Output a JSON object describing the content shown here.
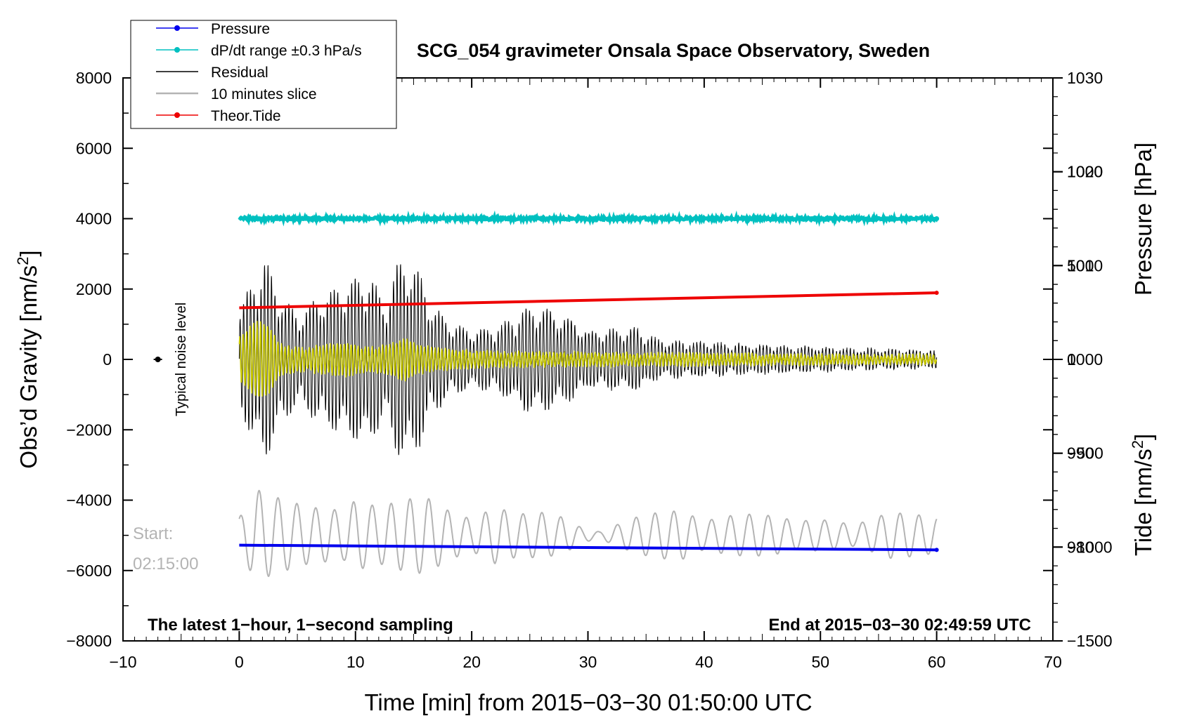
{
  "chart_data": {
    "type": "line",
    "title": "SCG_054 gravimeter Onsala Space Observatory, Sweden",
    "xlabel": "Time [min] from 2015−03−30 01:50:00 UTC",
    "ylabel_left": "Obs’d Gravity [nm/s",
    "ylabel_left_sup": "2",
    "ylabel_left_end": "]",
    "ylabel_pressure": "Pressure [hPa]",
    "ylabel_tide": "Tide [nm/s",
    "ylabel_tide_sup": "2",
    "ylabel_tide_end": "]",
    "xlim": [
      -10,
      70
    ],
    "ylim": [
      -8000,
      8000
    ],
    "x_ticks": [
      {
        "v": -10,
        "label": "−10"
      },
      {
        "v": 0,
        "label": "0"
      },
      {
        "v": 10,
        "label": "10"
      },
      {
        "v": 20,
        "label": "20"
      },
      {
        "v": 30,
        "label": "30"
      },
      {
        "v": 40,
        "label": "40"
      },
      {
        "v": 50,
        "label": "50"
      },
      {
        "v": 60,
        "label": "60"
      },
      {
        "v": 70,
        "label": "70"
      }
    ],
    "y_ticks_left": [
      {
        "v": 8000,
        "label": "8000"
      },
      {
        "v": 6000,
        "label": "6000"
      },
      {
        "v": 4000,
        "label": "4000"
      },
      {
        "v": 2000,
        "label": "2000"
      },
      {
        "v": 0,
        "label": "0"
      },
      {
        "v": -2000,
        "label": "−2000"
      },
      {
        "v": -4000,
        "label": "−4000"
      },
      {
        "v": -6000,
        "label": "−6000"
      },
      {
        "v": -8000,
        "label": "−8000"
      }
    ],
    "pressure_axis": {
      "range": [
        970,
        1030
      ],
      "ticks": [
        {
          "v": 1030,
          "label": "1030"
        },
        {
          "v": 1020,
          "label": "1020"
        },
        {
          "v": 1010,
          "label": "1010"
        },
        {
          "v": 1000,
          "label": "1000"
        },
        {
          "v": 990,
          "label": "990"
        },
        {
          "v": 980,
          "label": "980"
        }
      ]
    },
    "tide_axis": {
      "range": [
        -1500,
        1500
      ],
      "ticks": [
        {
          "v": 1000,
          "label": "1000"
        },
        {
          "v": 500,
          "label": "500"
        },
        {
          "v": 0,
          "label": "0"
        },
        {
          "v": -500,
          "label": "−500"
        },
        {
          "v": -1000,
          "label": "−1000"
        },
        {
          "v": -1500,
          "label": "−1500"
        }
      ]
    },
    "legend": [
      {
        "label": "Pressure",
        "color": "#0000ee",
        "marker": true
      },
      {
        "label": "dP/dt range ±0.3 hPa/s",
        "color": "#00c0c0",
        "marker": true
      },
      {
        "label": "Residual",
        "color": "#000000",
        "marker": false
      },
      {
        "label": "10 minutes slice",
        "color": "#b4b4b4",
        "marker": false
      },
      {
        "label": "Theor.Tide",
        "color": "#ee0000",
        "marker": true
      }
    ],
    "series": [
      {
        "name": "Pressure",
        "color": "#0000ee",
        "axis": "pressure",
        "x": [
          0,
          60
        ],
        "values": [
          980.2,
          979.7
        ]
      },
      {
        "name": "dP/dt range ±0.3 hPa/s",
        "color": "#00c0c0",
        "axis": "gravity",
        "x": [
          0,
          60
        ],
        "values": [
          4000,
          4000
        ],
        "jitter": 40
      },
      {
        "name": "Residual",
        "color": "#000000",
        "axis": "gravity",
        "x_range": [
          0,
          60
        ],
        "period_min": 0.3,
        "envelope_points": [
          [
            0,
            1400
          ],
          [
            1.2,
            2300
          ],
          [
            2.2,
            2900
          ],
          [
            3.5,
            1900
          ],
          [
            5,
            1300
          ],
          [
            6.5,
            1700
          ],
          [
            8.5,
            2100
          ],
          [
            10,
            2300
          ],
          [
            11.2,
            2500
          ],
          [
            12.5,
            1600
          ],
          [
            13.5,
            2700
          ],
          [
            14.3,
            3000
          ],
          [
            15.5,
            2500
          ],
          [
            16.5,
            1600
          ],
          [
            18,
            1100
          ],
          [
            20,
            800
          ],
          [
            22,
            900
          ],
          [
            23.5,
            1200
          ],
          [
            24.8,
            1500
          ],
          [
            26,
            1500
          ],
          [
            27.5,
            1300
          ],
          [
            29,
            1100
          ],
          [
            30,
            800
          ],
          [
            32,
            850
          ],
          [
            34.3,
            900
          ],
          [
            36,
            550
          ],
          [
            38,
            500
          ],
          [
            40,
            500
          ],
          [
            44,
            400
          ],
          [
            48,
            380
          ],
          [
            52,
            300
          ],
          [
            56,
            270
          ],
          [
            60,
            220
          ]
        ]
      },
      {
        "name": "yellow residual",
        "color": "#c8c800",
        "axis": "gravity",
        "x_range": [
          0,
          60
        ],
        "period_min": 0.3,
        "envelope_points": [
          [
            0,
            600
          ],
          [
            1.5,
            1050
          ],
          [
            2.5,
            1000
          ],
          [
            3.5,
            400
          ],
          [
            5,
            300
          ],
          [
            7,
            350
          ],
          [
            9,
            450
          ],
          [
            11,
            300
          ],
          [
            13,
            400
          ],
          [
            14.3,
            600
          ],
          [
            15.5,
            350
          ],
          [
            18,
            250
          ],
          [
            22,
            180
          ],
          [
            30,
            150
          ],
          [
            40,
            130
          ],
          [
            50,
            110
          ],
          [
            60,
            90
          ]
        ]
      },
      {
        "name": "Theor.Tide",
        "color": "#ee0000",
        "axis": "tide",
        "x": [
          0,
          60
        ],
        "values": [
          275,
          355
        ]
      },
      {
        "name": "10 minutes slice",
        "color": "#b4b4b4",
        "axis": "gravity",
        "x_range": [
          0,
          60
        ],
        "center": -5000,
        "cycles": 37,
        "amplitude_points": [
          [
            0,
            500
          ],
          [
            1.5,
            1300
          ],
          [
            3,
            1100
          ],
          [
            6,
            800
          ],
          [
            9,
            700
          ],
          [
            10,
            1000
          ],
          [
            12,
            800
          ],
          [
            14,
            1000
          ],
          [
            16,
            1100
          ],
          [
            18,
            700
          ],
          [
            20,
            450
          ],
          [
            22,
            800
          ],
          [
            24,
            600
          ],
          [
            26,
            650
          ],
          [
            28,
            500
          ],
          [
            29.5,
            200
          ],
          [
            31,
            100
          ],
          [
            32.5,
            300
          ],
          [
            34,
            500
          ],
          [
            36,
            650
          ],
          [
            38,
            700
          ],
          [
            40,
            400
          ],
          [
            42,
            550
          ],
          [
            44,
            600
          ],
          [
            46,
            550
          ],
          [
            48,
            400
          ],
          [
            50,
            450
          ],
          [
            52,
            350
          ],
          [
            53,
            300
          ],
          [
            56,
            650
          ],
          [
            58,
            600
          ],
          [
            60,
            500
          ]
        ]
      }
    ],
    "annotations": {
      "noise_label": "Typical noise level",
      "noise_marker": {
        "x": -7,
        "y": 0
      },
      "start_label": "Start:",
      "start_time": "02:15:00",
      "bottom_left": "The latest 1−hour, 1−second sampling",
      "bottom_right": "End at 2015−03−30 02:49:59 UTC"
    }
  }
}
